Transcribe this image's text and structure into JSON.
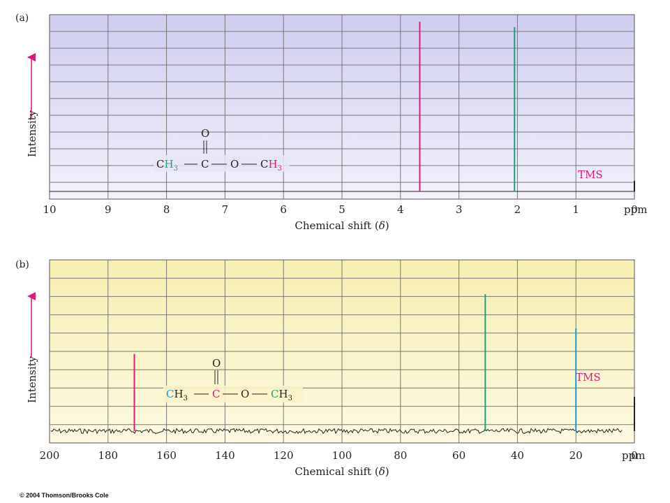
{
  "colors": {
    "proton_bg_top": "#cfcdf0",
    "proton_bg_bottom": "#f2f1fb",
    "carbon_bg_top": "#f7eeb0",
    "carbon_bg_bottom": "#fdf9e2",
    "grid": "#777777",
    "magenta": "#e0197a",
    "green": "#1aa37a",
    "blue": "#1b9ad6",
    "baseline": "#222222"
  },
  "chart_data": [
    {
      "type": "line",
      "panel_label": "(a)",
      "xlabel_main": "Chemical shift (",
      "xlabel_symbol": "δ",
      "xlabel_end": ")",
      "unit": "ppm",
      "ylabel": "Intensity",
      "xlim": [
        10,
        0
      ],
      "reversed_x": true,
      "x_ticks": [
        10,
        9,
        8,
        7,
        6,
        5,
        4,
        3,
        2,
        1,
        0
      ],
      "x_tick_labels": [
        "10",
        "9",
        "8",
        "7",
        "6",
        "5",
        "4",
        "3",
        "2",
        "1",
        "0"
      ],
      "grid": true,
      "peaks": [
        {
          "x": 3.67,
          "height": 0.96,
          "color": "#e0197a"
        },
        {
          "x": 2.05,
          "height": 0.93,
          "color": "#1aa37a"
        },
        {
          "x": 0.0,
          "height": 0.06,
          "color": "#222222"
        }
      ],
      "annotation": "TMS",
      "molecule": {
        "top_O": "O",
        "ch3_left_C": "C",
        "ch3_left_H": "H",
        "ch3_left_sub": "3",
        "carbonyl_C": "C",
        "ester_O": "O",
        "ch3_right_C": "C",
        "ch3_right_H": "H",
        "ch3_right_sub": "3"
      }
    },
    {
      "type": "line",
      "panel_label": "(b)",
      "xlabel_main": "Chemical shift (",
      "xlabel_symbol": "δ",
      "xlabel_end": ")",
      "unit": "ppm",
      "ylabel": "Intensity",
      "xlim": [
        200,
        0
      ],
      "reversed_x": true,
      "x_ticks": [
        200,
        180,
        160,
        140,
        120,
        100,
        80,
        60,
        40,
        20,
        0
      ],
      "x_tick_labels": [
        "200",
        "180",
        "160",
        "140",
        "120",
        "100",
        "80",
        "60",
        "40",
        "20",
        "0"
      ],
      "grid": true,
      "peaks": [
        {
          "x": 171,
          "height": 0.45,
          "color": "#e0197a"
        },
        {
          "x": 51,
          "height": 0.8,
          "color": "#1aa37a"
        },
        {
          "x": 20,
          "height": 0.6,
          "color": "#1b9ad6"
        },
        {
          "x": 0,
          "height": 0.2,
          "color": "#222222"
        }
      ],
      "annotation": "TMS",
      "molecule": {
        "top_O": "O",
        "ch3_left_C": "C",
        "ch3_left_H": "H",
        "ch3_left_sub": "3",
        "carbonyl_C": "C",
        "ester_O": "O",
        "ch3_right_C": "C",
        "ch3_right_H": "H",
        "ch3_right_sub": "3"
      }
    }
  ],
  "footer": {
    "copyright": "© 2004 Thomson/Brooks Cole"
  }
}
